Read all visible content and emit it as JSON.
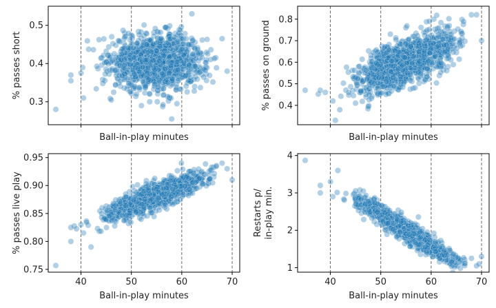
{
  "colors": {
    "point": "#1f77b4",
    "vline": "#555555",
    "frame": "#000000"
  },
  "chart_data": [
    {
      "type": "scatter",
      "xlabel": "Ball-in-play minutes",
      "ylabel": "% passes short",
      "xlim": [
        33.5,
        71.5
      ],
      "ylim": [
        0.24,
        0.55
      ],
      "xticks": [
        40,
        50,
        60,
        70
      ],
      "yticks": [
        "0.3",
        "0.4",
        "0.5"
      ],
      "show_xticklabels": false,
      "vlines": [
        40,
        50,
        60,
        70
      ],
      "trend": {
        "slope": 0.0,
        "center_x": 55,
        "center_y": 0.405,
        "spread": 0.035
      },
      "points_count": 1300,
      "points": [
        [
          35,
          0.28
        ],
        [
          38,
          0.37
        ],
        [
          38,
          0.355
        ],
        [
          40.5,
          0.31
        ],
        [
          40,
          0.375
        ],
        [
          58,
          0.255
        ],
        [
          62,
          0.53
        ],
        [
          69,
          0.38
        ],
        [
          68,
          0.465
        ],
        [
          52,
          0.29
        ]
      ]
    },
    {
      "type": "scatter",
      "xlabel": "Ball-in-play minutes",
      "ylabel": "% passes on ground",
      "xlim": [
        33.5,
        71.5
      ],
      "ylim": [
        0.31,
        0.86
      ],
      "xticks": [
        40,
        50,
        60,
        70
      ],
      "yticks": [
        "0.4",
        "0.5",
        "0.6",
        "0.7",
        "0.8"
      ],
      "show_xticklabels": false,
      "vlines": [
        40,
        50,
        60,
        70
      ],
      "trend": {
        "slope": 0.0092,
        "center_x": 55,
        "center_y": 0.6,
        "spread": 0.05
      },
      "points_count": 1300,
      "points": [
        [
          35,
          0.47
        ],
        [
          38,
          0.47
        ],
        [
          39,
          0.46
        ],
        [
          40.5,
          0.42
        ],
        [
          41,
          0.33
        ],
        [
          68,
          0.82
        ],
        [
          70,
          0.7
        ],
        [
          69,
          0.82
        ],
        [
          45,
          0.41
        ]
      ]
    },
    {
      "type": "scatter",
      "xlabel": "Ball-in-play minutes",
      "ylabel": "% passes live play",
      "xlim": [
        33.5,
        71.5
      ],
      "ylim": [
        0.745,
        0.957
      ],
      "xticks": [
        "40",
        "50",
        "60",
        "70"
      ],
      "yticks": [
        "0.75",
        "0.80",
        "0.85",
        "0.90",
        "0.95"
      ],
      "show_xticklabels": true,
      "vlines": [
        40,
        50,
        60,
        70
      ],
      "trend": {
        "slope": 0.0035,
        "center_x": 55,
        "center_y": 0.882,
        "spread": 0.011
      },
      "points_count": 1300,
      "points": [
        [
          35,
          0.757
        ],
        [
          38,
          0.8
        ],
        [
          38,
          0.825
        ],
        [
          40,
          0.83
        ],
        [
          40.5,
          0.815
        ],
        [
          42,
          0.79
        ],
        [
          68,
          0.94
        ],
        [
          70,
          0.91
        ],
        [
          69,
          0.93
        ]
      ]
    },
    {
      "type": "scatter",
      "xlabel": "Ball-in-play minutes",
      "ylabel": "Restarts p/\nin-play min.",
      "xlim": [
        33.5,
        71.5
      ],
      "ylim": [
        0.88,
        4.05
      ],
      "xticks": [
        "40",
        "50",
        "60",
        "70"
      ],
      "yticks": [
        "1",
        "2",
        "3",
        "4"
      ],
      "show_xticklabels": true,
      "vlines": [
        40,
        50,
        60,
        70
      ],
      "trend": {
        "slope": -0.083,
        "center_x": 55,
        "center_y": 2.0,
        "spread": 0.13
      },
      "points_count": 1300,
      "points": [
        [
          35,
          3.87
        ],
        [
          38,
          3.0
        ],
        [
          38,
          3.2
        ],
        [
          40,
          3.3
        ],
        [
          40.5,
          2.9
        ],
        [
          41.5,
          3.6
        ],
        [
          68,
          1.25
        ],
        [
          69,
          1.05
        ],
        [
          70,
          1.3
        ],
        [
          69.5,
          1.1
        ]
      ]
    }
  ]
}
